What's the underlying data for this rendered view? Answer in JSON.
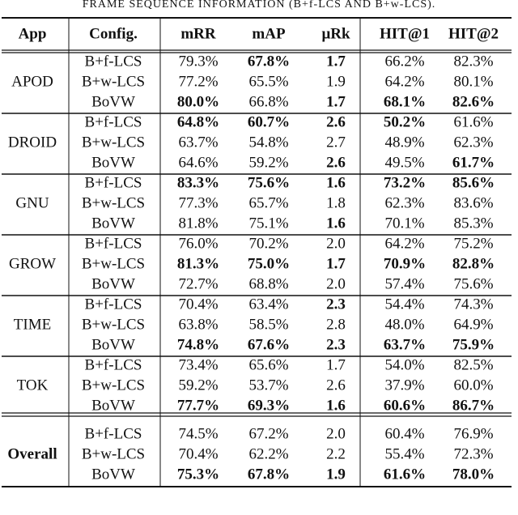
{
  "caption": "FRAME SEQUENCE INFORMATION (B+f-LCS AND B+w-LCS).",
  "table": {
    "header": [
      "App",
      "Config.",
      "mRR",
      "mAP",
      "μRk",
      "HIT@1",
      "HIT@2"
    ],
    "groups": [
      {
        "app": "APOD",
        "bold_app": false,
        "rows": [
          {
            "config": "B+f-LCS",
            "cells": [
              "79.3%",
              "67.8%",
              "1.7",
              "66.2%",
              "82.3%"
            ],
            "bold": [
              false,
              true,
              true,
              false,
              false
            ]
          },
          {
            "config": "B+w-LCS",
            "cells": [
              "77.2%",
              "65.5%",
              "1.9",
              "64.2%",
              "80.1%"
            ],
            "bold": [
              false,
              false,
              false,
              false,
              false
            ]
          },
          {
            "config": "BoVW",
            "cells": [
              "80.0%",
              "66.8%",
              "1.7",
              "68.1%",
              "82.6%"
            ],
            "bold": [
              true,
              false,
              true,
              true,
              true
            ]
          }
        ]
      },
      {
        "app": "DROID",
        "bold_app": false,
        "rows": [
          {
            "config": "B+f-LCS",
            "cells": [
              "64.8%",
              "60.7%",
              "2.6",
              "50.2%",
              "61.6%"
            ],
            "bold": [
              true,
              true,
              true,
              true,
              false
            ]
          },
          {
            "config": "B+w-LCS",
            "cells": [
              "63.7%",
              "54.8%",
              "2.7",
              "48.9%",
              "62.3%"
            ],
            "bold": [
              false,
              false,
              false,
              false,
              false
            ]
          },
          {
            "config": "BoVW",
            "cells": [
              "64.6%",
              "59.2%",
              "2.6",
              "49.5%",
              "61.7%"
            ],
            "bold": [
              false,
              false,
              true,
              false,
              true
            ]
          }
        ]
      },
      {
        "app": "GNU",
        "bold_app": false,
        "rows": [
          {
            "config": "B+f-LCS",
            "cells": [
              "83.3%",
              "75.6%",
              "1.6",
              "73.2%",
              "85.6%"
            ],
            "bold": [
              true,
              true,
              true,
              true,
              true
            ]
          },
          {
            "config": "B+w-LCS",
            "cells": [
              "77.3%",
              "65.7%",
              "1.8",
              "62.3%",
              "83.6%"
            ],
            "bold": [
              false,
              false,
              false,
              false,
              false
            ]
          },
          {
            "config": "BoVW",
            "cells": [
              "81.8%",
              "75.1%",
              "1.6",
              "70.1%",
              "85.3%"
            ],
            "bold": [
              false,
              false,
              true,
              false,
              false
            ]
          }
        ]
      },
      {
        "app": "GROW",
        "bold_app": false,
        "rows": [
          {
            "config": "B+f-LCS",
            "cells": [
              "76.0%",
              "70.2%",
              "2.0",
              "64.2%",
              "75.2%"
            ],
            "bold": [
              false,
              false,
              false,
              false,
              false
            ]
          },
          {
            "config": "B+w-LCS",
            "cells": [
              "81.3%",
              "75.0%",
              "1.7",
              "70.9%",
              "82.8%"
            ],
            "bold": [
              true,
              true,
              true,
              true,
              true
            ]
          },
          {
            "config": "BoVW",
            "cells": [
              "72.7%",
              "68.8%",
              "2.0",
              "57.4%",
              "75.6%"
            ],
            "bold": [
              false,
              false,
              false,
              false,
              false
            ]
          }
        ]
      },
      {
        "app": "TIME",
        "bold_app": false,
        "rows": [
          {
            "config": "B+f-LCS",
            "cells": [
              "70.4%",
              "63.4%",
              "2.3",
              "54.4%",
              "74.3%"
            ],
            "bold": [
              false,
              false,
              true,
              false,
              false
            ]
          },
          {
            "config": "B+w-LCS",
            "cells": [
              "63.8%",
              "58.5%",
              "2.8",
              "48.0%",
              "64.9%"
            ],
            "bold": [
              false,
              false,
              false,
              false,
              false
            ]
          },
          {
            "config": "BoVW",
            "cells": [
              "74.8%",
              "67.6%",
              "2.3",
              "63.7%",
              "75.9%"
            ],
            "bold": [
              true,
              true,
              true,
              true,
              true
            ]
          }
        ]
      },
      {
        "app": "TOK",
        "bold_app": false,
        "rows": [
          {
            "config": "B+f-LCS",
            "cells": [
              "73.4%",
              "65.6%",
              "1.7",
              "54.0%",
              "82.5%"
            ],
            "bold": [
              false,
              false,
              false,
              false,
              false
            ]
          },
          {
            "config": "B+w-LCS",
            "cells": [
              "59.2%",
              "53.7%",
              "2.6",
              "37.9%",
              "60.0%"
            ],
            "bold": [
              false,
              false,
              false,
              false,
              false
            ]
          },
          {
            "config": "BoVW",
            "cells": [
              "77.7%",
              "69.3%",
              "1.6",
              "60.6%",
              "86.7%"
            ],
            "bold": [
              true,
              true,
              true,
              true,
              true
            ]
          }
        ]
      },
      {
        "app": "Overall",
        "bold_app": true,
        "rows": [
          {
            "config": "B+f-LCS",
            "cells": [
              "74.5%",
              "67.2%",
              "2.0",
              "60.4%",
              "76.9%"
            ],
            "bold": [
              false,
              false,
              false,
              false,
              false
            ]
          },
          {
            "config": "B+w-LCS",
            "cells": [
              "70.4%",
              "62.2%",
              "2.2",
              "55.4%",
              "72.3%"
            ],
            "bold": [
              false,
              false,
              false,
              false,
              false
            ]
          },
          {
            "config": "BoVW",
            "cells": [
              "75.3%",
              "67.8%",
              "1.9",
              "61.6%",
              "78.0%"
            ],
            "bold": [
              true,
              true,
              true,
              true,
              true
            ]
          }
        ]
      }
    ]
  }
}
